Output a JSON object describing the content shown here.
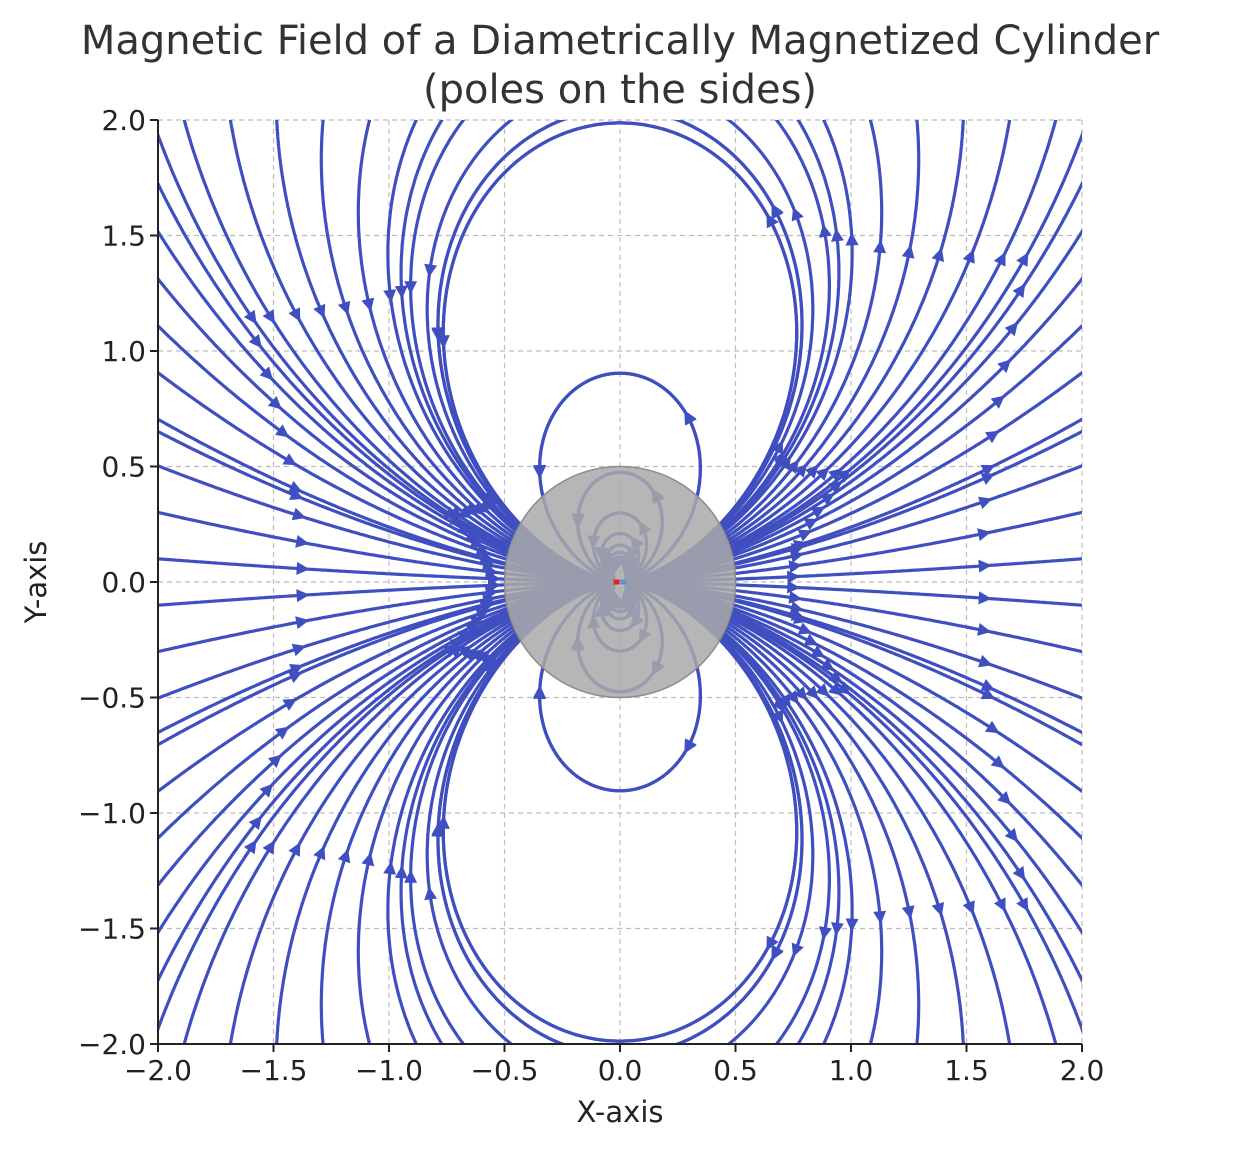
{
  "chart_data": {
    "type": "streamplot",
    "title": "Magnetic Field of a Diametrically Magnetized Cylinder",
    "subtitle": "(poles on the sides)",
    "xlabel": "X-axis",
    "ylabel": "Y-axis",
    "xlim": [
      -2.0,
      2.0
    ],
    "ylim": [
      -2.0,
      2.0
    ],
    "x_ticks": [
      -2.0,
      -1.5,
      -1.0,
      -0.5,
      0.0,
      0.5,
      1.0,
      1.5,
      2.0
    ],
    "y_ticks": [
      -2.0,
      -1.5,
      -1.0,
      -0.5,
      0.0,
      0.5,
      1.0,
      1.5,
      2.0
    ],
    "x_tick_labels": [
      "−2.0",
      "−1.5",
      "−1.0",
      "−0.5",
      "0.0",
      "0.5",
      "1.0",
      "1.5",
      "2.0"
    ],
    "y_tick_labels": [
      "−2.0",
      "−1.5",
      "−1.0",
      "−0.5",
      "0.0",
      "0.5",
      "1.0",
      "1.5",
      "2.0"
    ],
    "grid": true,
    "field": {
      "model": "point dipole at origin",
      "moment_direction": [
        1,
        0
      ],
      "line_color": "#3f4fbf"
    },
    "cylinder": {
      "center": [
        0.0,
        0.0
      ],
      "radius": 0.5,
      "fill_color": "#a9a9a9"
    },
    "poles": [
      {
        "x": -0.015,
        "y": 0.0,
        "color": "#d62728"
      },
      {
        "x": 0.015,
        "y": 0.0,
        "color": "#5b8fd6"
      }
    ]
  }
}
